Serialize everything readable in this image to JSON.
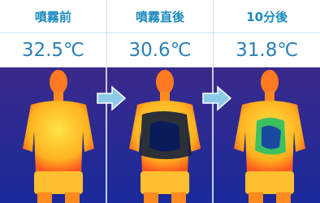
{
  "table": {
    "headers": [
      "噴霧前",
      "噴霧直後",
      "10分後"
    ],
    "temperatures": [
      "32.5℃",
      "30.6℃",
      "31.8℃"
    ]
  }
}
